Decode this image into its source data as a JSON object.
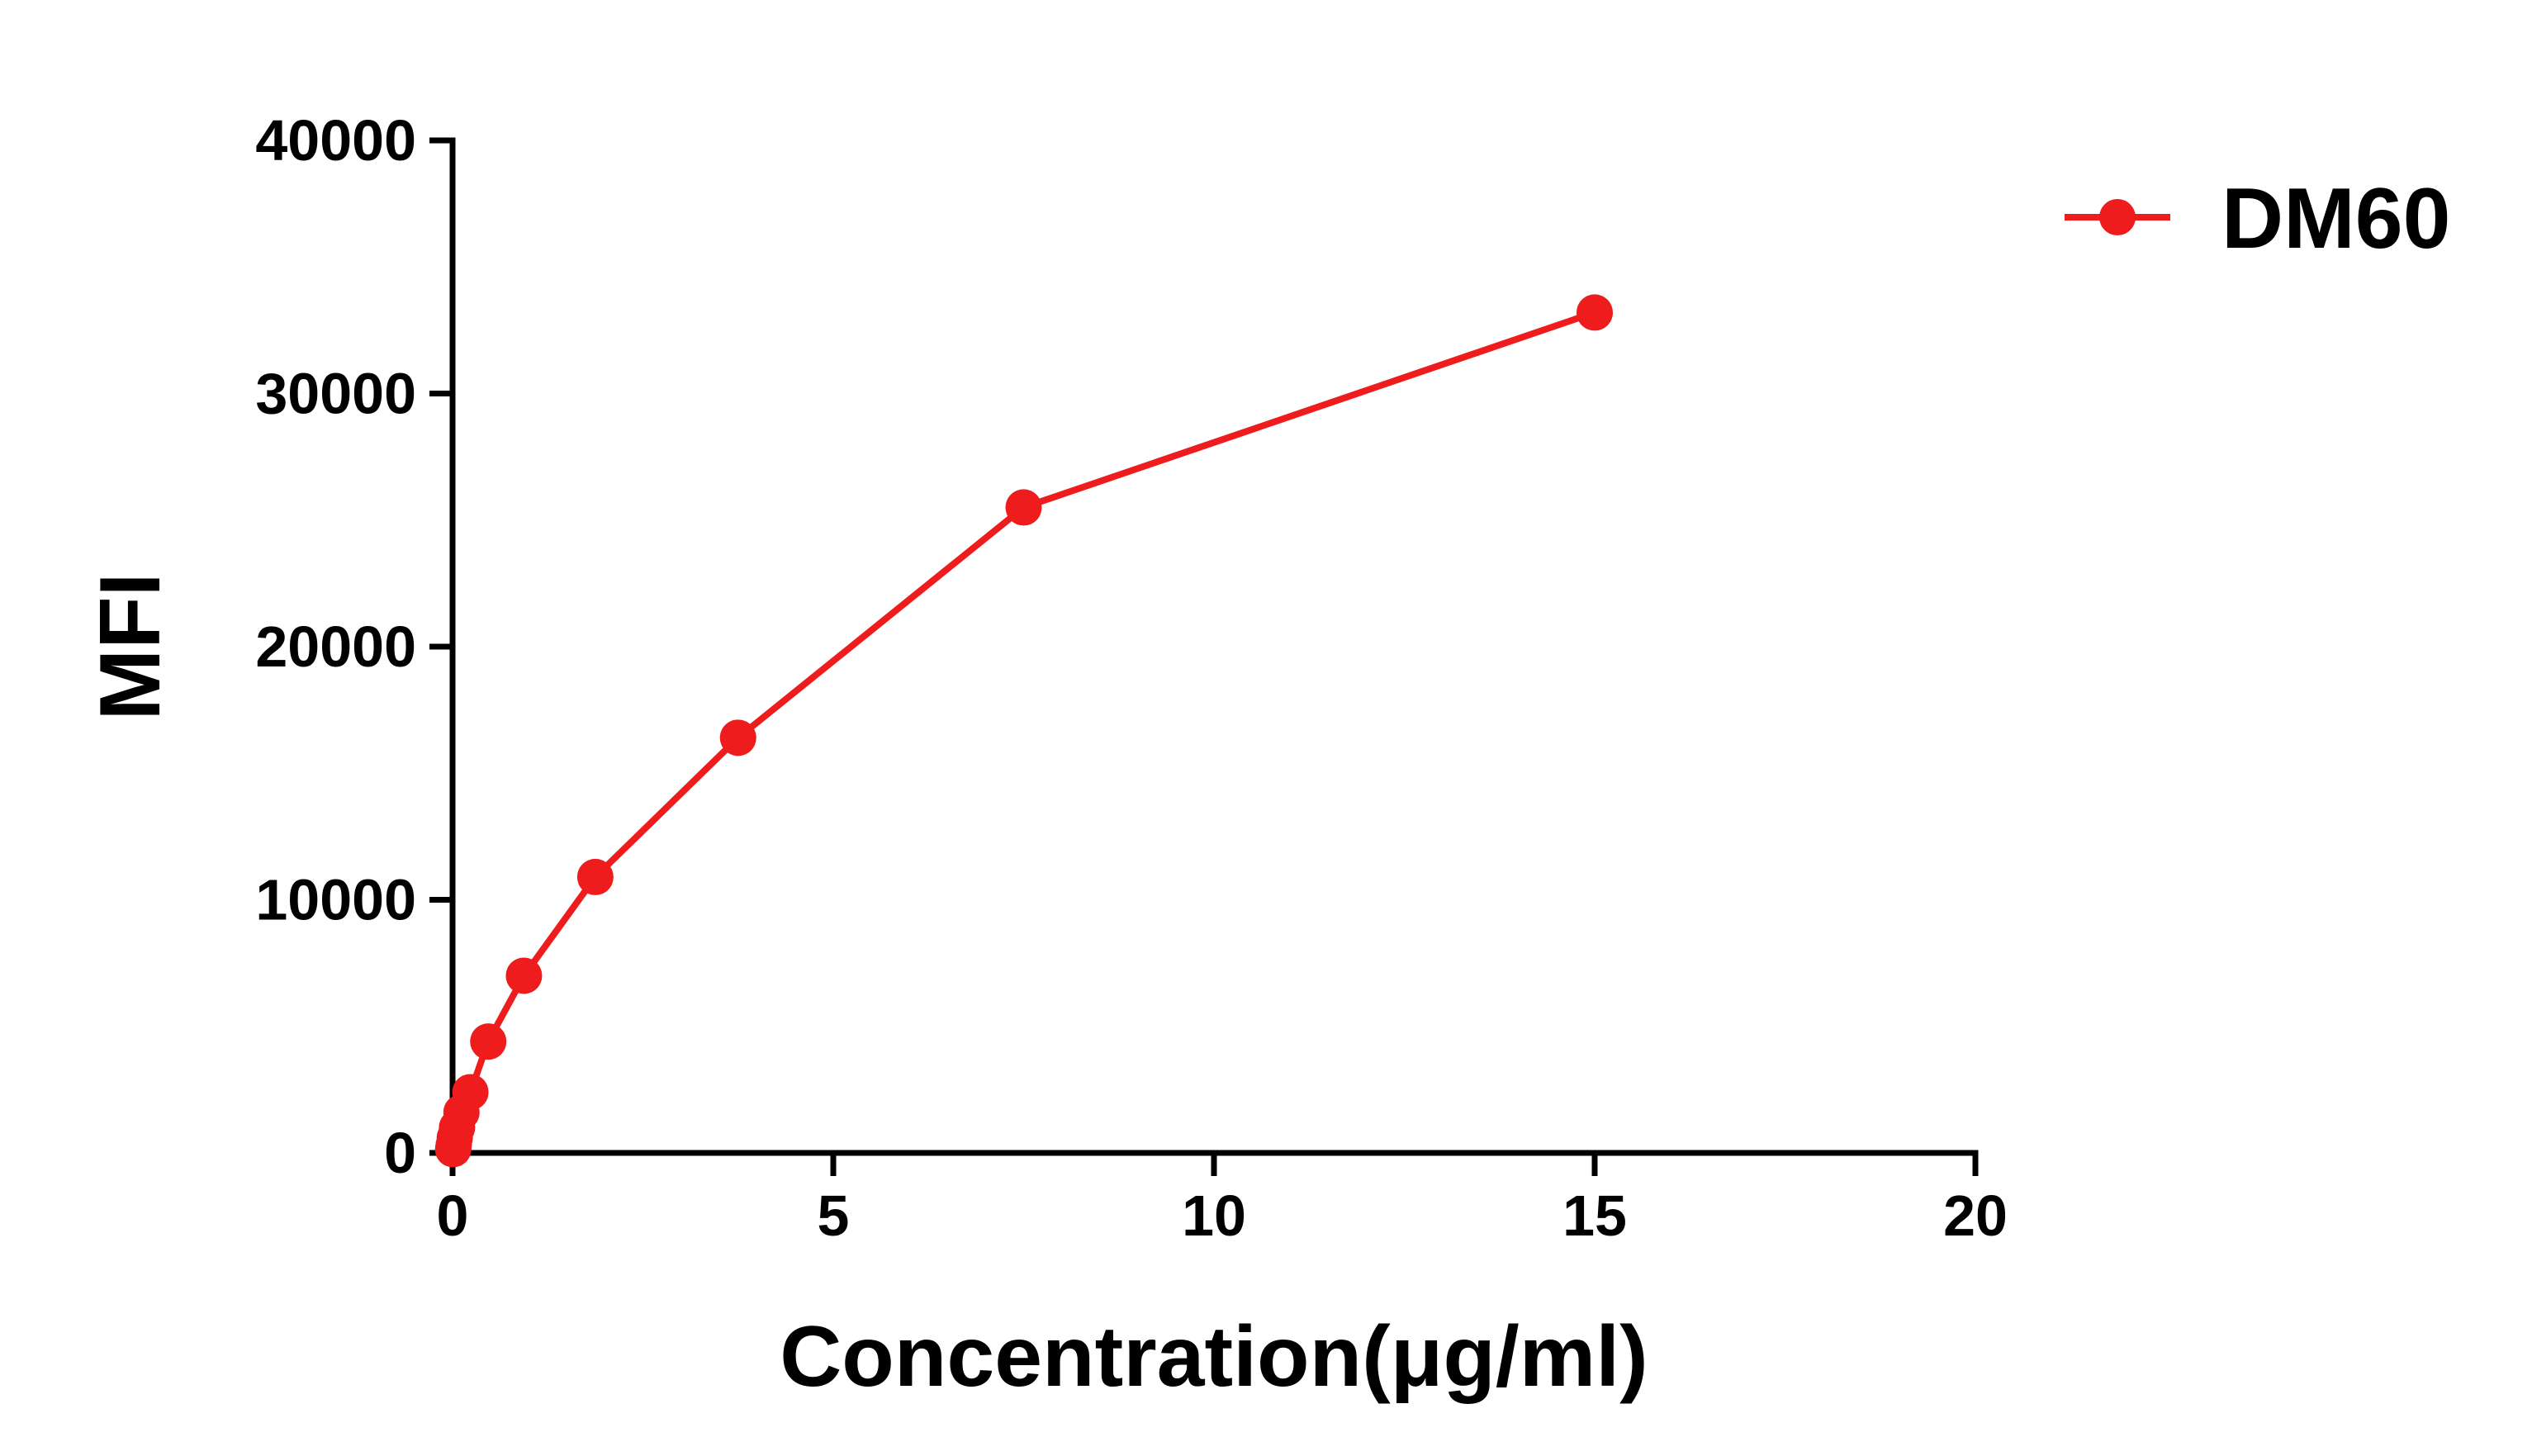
{
  "chart_data": {
    "type": "line",
    "title": "",
    "xlabel": "Concentration(μg/ml)",
    "ylabel": "MFI",
    "xlim": [
      0,
      20
    ],
    "ylim": [
      0,
      40000
    ],
    "xticks": [
      0,
      5,
      10,
      15,
      20
    ],
    "xtick_labels": [
      "0",
      "5",
      "10",
      "15",
      "20"
    ],
    "yticks": [
      0,
      10000,
      20000,
      30000,
      40000
    ],
    "ytick_labels": [
      "0",
      "10000",
      "20000",
      "30000",
      "40000"
    ],
    "grid": false,
    "legend_position": "top-right",
    "series": [
      {
        "name": "DM60",
        "color": "#ee1c1c",
        "marker": "circle",
        "x": [
          0.0073,
          0.0146,
          0.0293,
          0.0586,
          0.117,
          0.234,
          0.469,
          0.9375,
          1.875,
          3.75,
          7.5,
          15
        ],
        "y": [
          150,
          300,
          600,
          1000,
          1600,
          2400,
          4400,
          7000,
          10900,
          16400,
          25500,
          33200
        ]
      }
    ]
  }
}
